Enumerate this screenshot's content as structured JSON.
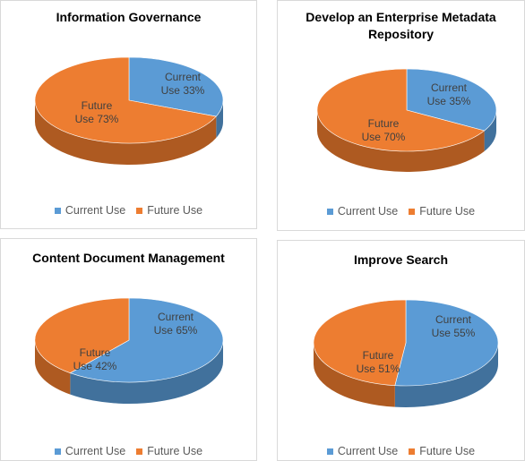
{
  "colors": {
    "current_top": "#5B9BD5",
    "current_side": "#41719C",
    "future_top": "#ED7D31",
    "future_side": "#AE5A21",
    "slice_label_current": "#404040",
    "slice_label_future": "#404040",
    "legend_text": "#595959"
  },
  "legend": {
    "current": "Current Use",
    "future": "Future Use"
  },
  "chart_data": [
    {
      "type": "pie",
      "title": "Information Governance",
      "slices": [
        {
          "name": "Current Use",
          "value": 33,
          "label_line1": "Current",
          "label_line2": "Use 33%"
        },
        {
          "name": "Future Use",
          "value": 73,
          "label_line1": "Future",
          "label_line2": "Use 73%"
        }
      ],
      "legend_position": "bottom"
    },
    {
      "type": "pie",
      "title_lines": [
        "Develop an Enterprise Metadata",
        "Repository"
      ],
      "slices": [
        {
          "name": "Current Use",
          "value": 35,
          "label_line1": "Current",
          "label_line2": "Use 35%"
        },
        {
          "name": "Future Use",
          "value": 70,
          "label_line1": "Future",
          "label_line2": "Use 70%"
        }
      ],
      "legend_position": "bottom"
    },
    {
      "type": "pie",
      "title": "Content Document Management",
      "slices": [
        {
          "name": "Current Use",
          "value": 65,
          "label_line1": "Current",
          "label_line2": "Use 65%"
        },
        {
          "name": "Future Use",
          "value": 42,
          "label_line1": "Future",
          "label_line2": "Use 42%"
        }
      ],
      "legend_position": "bottom"
    },
    {
      "type": "pie",
      "title": "Improve Search",
      "slices": [
        {
          "name": "Current Use",
          "value": 55,
          "label_line1": "Current",
          "label_line2": "Use 55%"
        },
        {
          "name": "Future Use",
          "value": 51,
          "label_line1": "Future",
          "label_line2": "Use 51%"
        }
      ],
      "legend_position": "bottom"
    }
  ]
}
